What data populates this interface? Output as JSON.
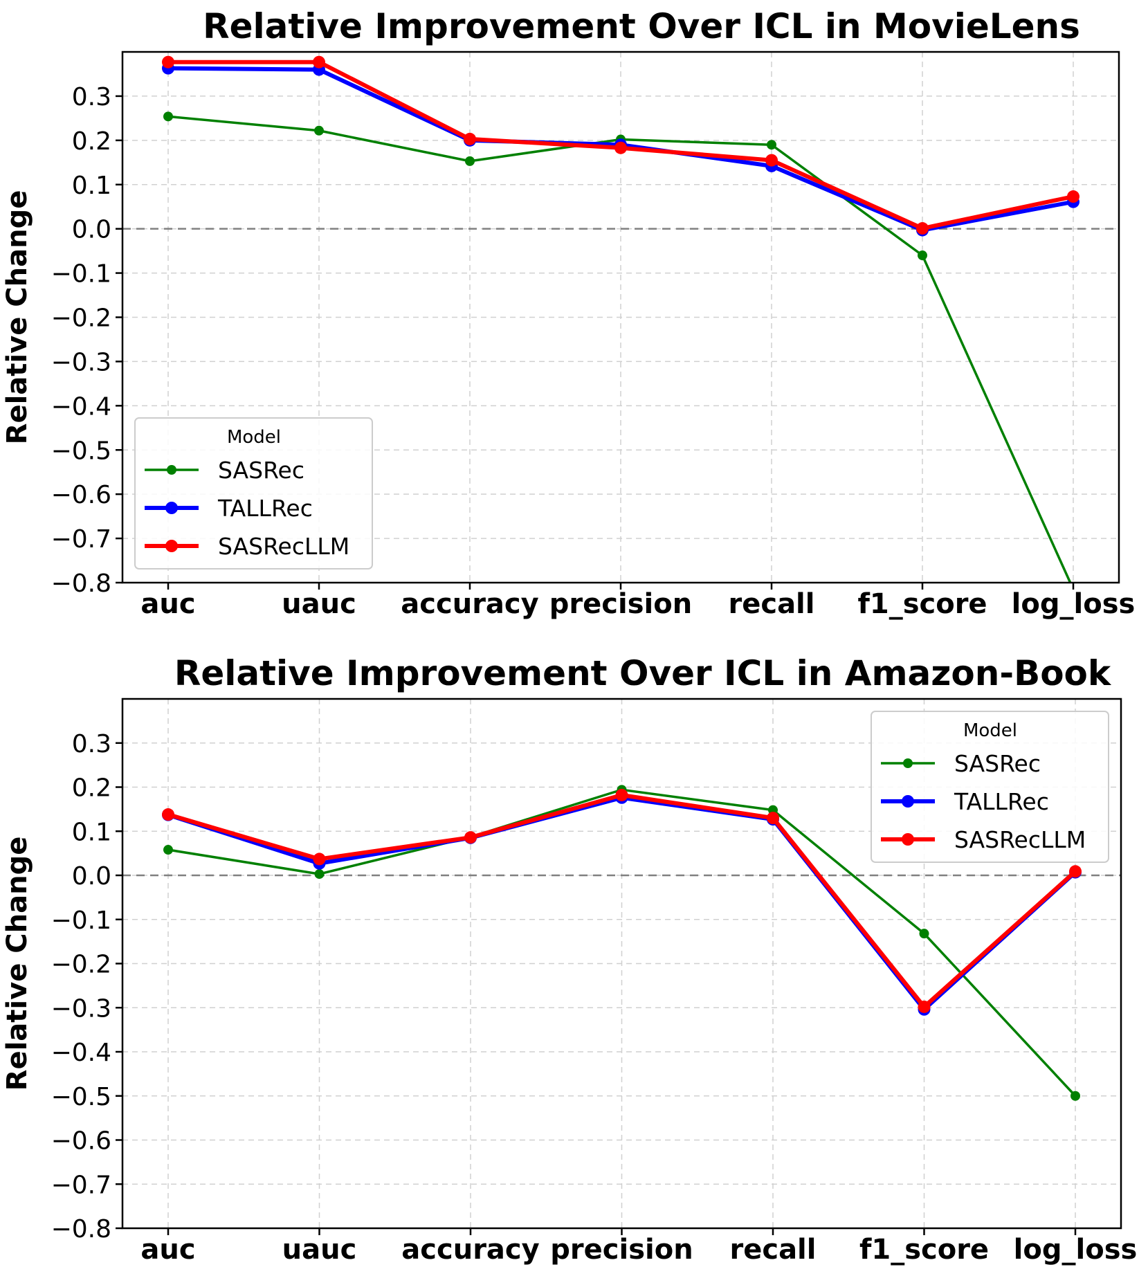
{
  "chart_data": [
    {
      "type": "line",
      "title": "Relative Improvement Over ICL in MovieLens",
      "xlabel": "",
      "ylabel": "Relative Change",
      "categories": [
        "auc",
        "uauc",
        "accuracy",
        "precision",
        "recall",
        "f1_score",
        "log_loss"
      ],
      "ylim": [
        -0.8,
        0.4
      ],
      "yticks": [
        "0.3",
        "0.2",
        "0.1",
        "0.0",
        "−0.1",
        "−0.2",
        "−0.3",
        "−0.4",
        "−0.5",
        "−0.6",
        "−0.7",
        "−0.8"
      ],
      "yticks_values": [
        0.3,
        0.2,
        0.1,
        0.0,
        -0.1,
        -0.2,
        -0.3,
        -0.4,
        -0.5,
        -0.6,
        -0.7,
        -0.8
      ],
      "grid": true,
      "zero_line": true,
      "legend": {
        "title": "Model",
        "location": "lower-left"
      },
      "series": [
        {
          "name": "SASRec",
          "color": "#008000",
          "values": [
            0.254,
            0.222,
            0.153,
            0.202,
            0.19,
            -0.06,
            -0.815
          ]
        },
        {
          "name": "TALLRec",
          "color": "#0000ff",
          "values": [
            0.363,
            0.36,
            0.2,
            0.19,
            0.142,
            -0.003,
            0.061
          ]
        },
        {
          "name": "SASRecLLM",
          "color": "#ff0000",
          "values": [
            0.377,
            0.377,
            0.203,
            0.183,
            0.155,
            0.001,
            0.073
          ]
        }
      ]
    },
    {
      "type": "line",
      "title": "Relative Improvement Over ICL in Amazon-Book",
      "xlabel": "",
      "ylabel": "Relative Change",
      "categories": [
        "auc",
        "uauc",
        "accuracy",
        "precision",
        "recall",
        "f1_score",
        "log_loss"
      ],
      "ylim": [
        -0.8,
        0.4
      ],
      "yticks": [
        "0.3",
        "0.2",
        "0.1",
        "0.0",
        "−0.1",
        "−0.2",
        "−0.3",
        "−0.4",
        "−0.5",
        "−0.6",
        "−0.7",
        "−0.8"
      ],
      "yticks_values": [
        0.3,
        0.2,
        0.1,
        0.0,
        -0.1,
        -0.2,
        -0.3,
        -0.4,
        -0.5,
        -0.6,
        -0.7,
        -0.8
      ],
      "grid": true,
      "zero_line": true,
      "legend": {
        "title": "Model",
        "location": "upper-right"
      },
      "series": [
        {
          "name": "SASRec",
          "color": "#008000",
          "values": [
            0.058,
            0.003,
            0.087,
            0.194,
            0.148,
            -0.132,
            -0.5
          ]
        },
        {
          "name": "TALLRec",
          "color": "#0000ff",
          "values": [
            0.137,
            0.027,
            0.085,
            0.176,
            0.127,
            -0.304,
            0.007
          ]
        },
        {
          "name": "SASRecLLM",
          "color": "#ff0000",
          "values": [
            0.138,
            0.037,
            0.086,
            0.182,
            0.13,
            -0.298,
            0.009
          ]
        }
      ]
    }
  ]
}
